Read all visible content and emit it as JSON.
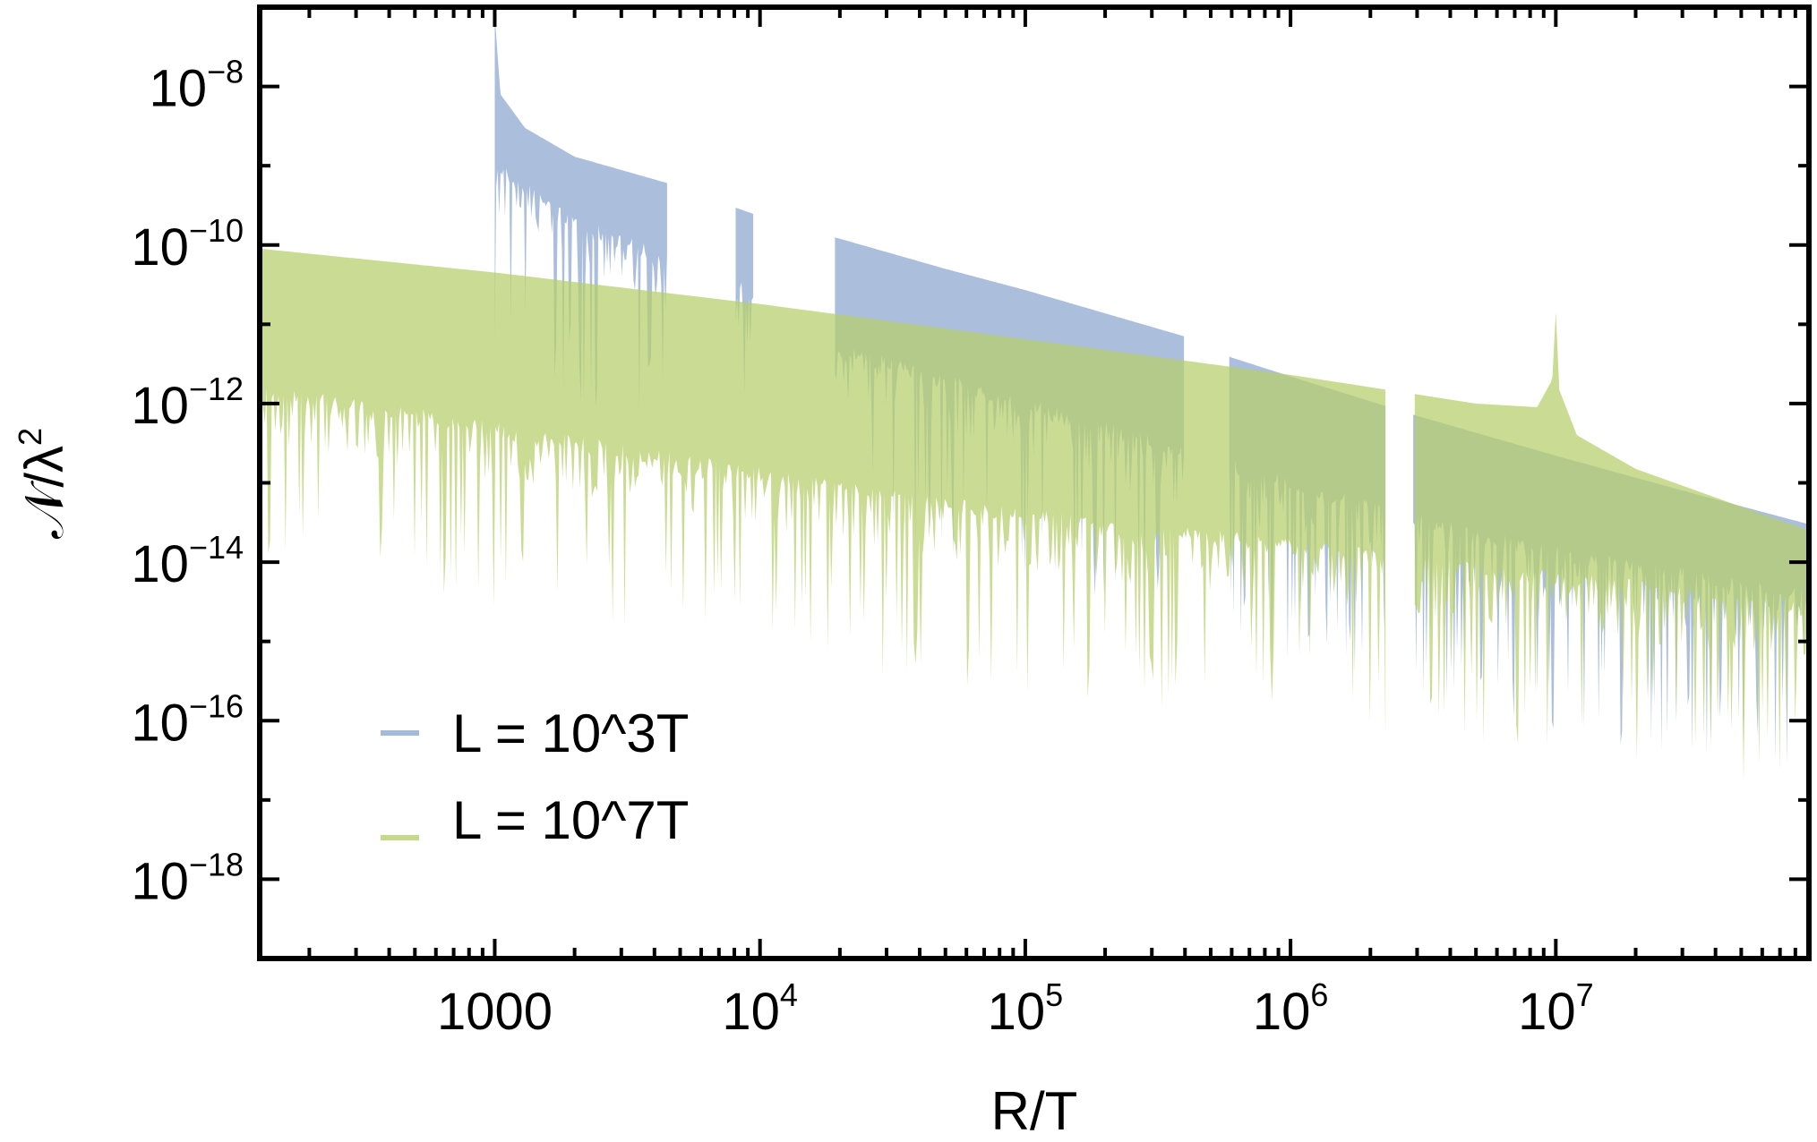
{
  "chart_data": {
    "type": "area",
    "xlabel": "R/T",
    "ylabel_main": "𝒩/λ",
    "ylabel_sup": "2",
    "xscale": "log",
    "yscale": "log",
    "xlim": [
      130,
      90000000
    ],
    "ylim": [
      1e-19,
      1e-07
    ],
    "x_ticks": [
      {
        "value": 1000,
        "base": "1000",
        "exp": ""
      },
      {
        "value": 10000,
        "base": "10",
        "exp": "4"
      },
      {
        "value": 100000,
        "base": "10",
        "exp": "5"
      },
      {
        "value": 1000000,
        "base": "10",
        "exp": "6"
      },
      {
        "value": 10000000,
        "base": "10",
        "exp": "7"
      }
    ],
    "y_ticks": [
      {
        "value": 1e-08,
        "base": "10",
        "exp": "−8"
      },
      {
        "value": 1e-10,
        "base": "10",
        "exp": "−10"
      },
      {
        "value": 1e-12,
        "base": "10",
        "exp": "−12"
      },
      {
        "value": 1e-14,
        "base": "10",
        "exp": "−14"
      },
      {
        "value": 1e-16,
        "base": "10",
        "exp": "−16"
      },
      {
        "value": 1e-18,
        "base": "10",
        "exp": "−18"
      }
    ],
    "legend_position": "bottom-left",
    "series": [
      {
        "name": "L = 10^3T",
        "color": "#8fa8d0",
        "x_start": 1000,
        "x_end": 90000000,
        "upper": [
          [
            1000,
            8e-08
          ],
          [
            1050,
            8e-09
          ],
          [
            1300,
            3e-09
          ],
          [
            2000,
            1.3e-09
          ],
          [
            4500,
            6e-10
          ],
          [
            8000,
            3e-10
          ],
          [
            10000,
            2.3e-10
          ],
          [
            20000,
            1.2e-10
          ],
          [
            50000,
            5e-11
          ],
          [
            100000,
            2.7e-11
          ],
          [
            400000,
            7e-12
          ],
          [
            600000,
            3.8e-12
          ],
          [
            1000000,
            2.2e-12
          ],
          [
            3000000,
            7e-13
          ],
          [
            10000000,
            2.2e-13
          ],
          [
            30000000,
            8e-14
          ],
          [
            90000000,
            3e-14
          ]
        ],
        "lower": [
          [
            1000,
            3e-10
          ],
          [
            2000,
            6e-11
          ],
          [
            4500,
            2e-11
          ],
          [
            8000,
            1e-11
          ],
          [
            20000,
            1.5e-12
          ],
          [
            100000,
            3e-13
          ],
          [
            600000,
            5e-14
          ],
          [
            2000000,
            1.5e-14
          ],
          [
            10000000,
            4e-15
          ],
          [
            90000000,
            1.2e-15
          ]
        ],
        "gaps": [
          [
            4500,
            8000
          ],
          [
            9500,
            19000
          ],
          [
            400000,
            580000
          ],
          [
            2300000,
            2900000
          ]
        ]
      },
      {
        "name": "L = 10^7T",
        "color": "#b5cf6b",
        "x_start": 130,
        "x_end": 90000000,
        "upper": [
          [
            130,
            9e-11
          ],
          [
            1000,
            4.5e-11
          ],
          [
            10000,
            1.8e-11
          ],
          [
            100000,
            6.5e-12
          ],
          [
            1000000,
            2.3e-12
          ],
          [
            5000000,
            1e-12
          ],
          [
            8500000,
            9e-13
          ],
          [
            9700000,
            2e-12
          ],
          [
            10000000,
            1.5e-11
          ],
          [
            10300000,
            1.5e-12
          ],
          [
            12000000,
            4e-13
          ],
          [
            20000000,
            1.5e-13
          ],
          [
            50000000,
            5e-14
          ],
          [
            90000000,
            2.5e-14
          ]
        ],
        "lower": [
          [
            130,
            5e-13
          ],
          [
            1000,
            1.5e-13
          ],
          [
            10000,
            4e-14
          ],
          [
            100000,
            1.2e-14
          ],
          [
            1000000,
            5e-15
          ],
          [
            10000000,
            2e-15
          ],
          [
            90000000,
            8e-16
          ]
        ],
        "gaps": [
          [
            2300000,
            2900000
          ]
        ]
      }
    ]
  }
}
